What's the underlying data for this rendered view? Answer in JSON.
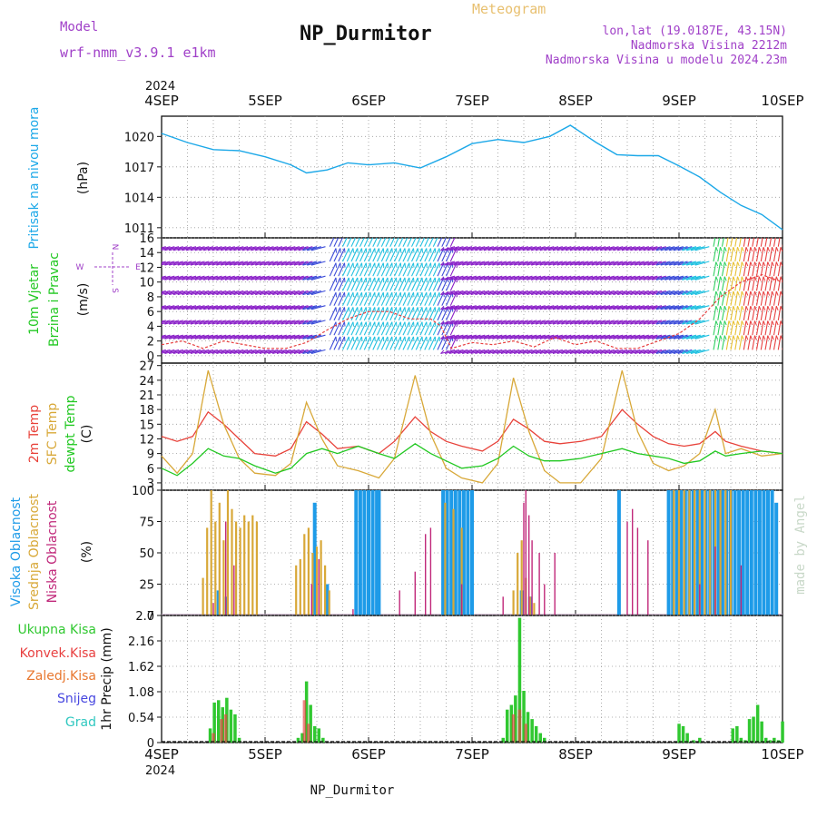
{
  "header": {
    "model_label": "Model",
    "model_name": "wrf-nmm_v3.9.1 e1km",
    "title": "NP_Durmitor",
    "meteogram_label": "Meteogram",
    "lonlat": "lon,lat (19.0187E, 43.15N)",
    "altitude": "Nadmorska Visina 2212m",
    "model_altitude": "Nadmorska Visina u modelu 2024.23m",
    "footer_station": "NP_Durmitor",
    "credit": "made by Angel"
  },
  "colors": {
    "pressure": "#1ca8e8",
    "temp_2m": "#e8423a",
    "sfc_temp": "#d8a838",
    "dewpoint": "#22c822",
    "high_cloud": "#1e9be8",
    "mid_cloud": "#d8a838",
    "low_cloud": "#c0287a",
    "total_precip": "#30c830",
    "conv_precip": "#e84040",
    "frozen_precip": "#e87830",
    "snow": "#4848e0",
    "hail": "#30c8c0",
    "header_purple": "#a040c8"
  },
  "chart_data": [
    {
      "type": "line",
      "panel": "pressure",
      "ylabel": [
        "Pritisak na nivou mora",
        "(hPa)"
      ],
      "yticks": [
        1011,
        1014,
        1017,
        1020
      ],
      "ylim": [
        1010,
        1022
      ],
      "x_days": [
        0,
        0.25,
        0.5,
        0.75,
        1.0,
        1.25,
        1.4,
        1.6,
        1.8,
        2.0,
        2.25,
        2.5,
        2.75,
        3.0,
        3.25,
        3.5,
        3.75,
        3.95,
        4.2,
        4.4,
        4.6,
        4.8,
        5.0,
        5.2,
        5.4,
        5.6,
        5.8,
        6.0
      ],
      "values": [
        1020.3,
        1019.4,
        1018.7,
        1018.6,
        1018.0,
        1017.2,
        1016.4,
        1016.7,
        1017.4,
        1017.2,
        1017.4,
        1016.9,
        1018.0,
        1019.3,
        1019.7,
        1019.4,
        1020.0,
        1021.1,
        1019.4,
        1018.2,
        1018.1,
        1018.1,
        1017.1,
        1016.0,
        1014.5,
        1013.2,
        1012.3,
        1010.8
      ]
    },
    {
      "type": "line",
      "panel": "wind",
      "ylabel": [
        "10m Vjetar",
        "Brzina i Pravac",
        "(m/s)"
      ],
      "yticks": [
        0,
        2,
        4,
        6,
        8,
        10,
        12,
        14,
        16
      ],
      "ylim": [
        -1,
        16
      ],
      "compass_labels": [
        "N",
        "W",
        "E",
        "S"
      ],
      "x_days": [
        0,
        0.2,
        0.4,
        0.6,
        0.8,
        1.0,
        1.2,
        1.4,
        1.6,
        1.8,
        2.0,
        2.2,
        2.4,
        2.6,
        2.7,
        2.8,
        3.0,
        3.2,
        3.4,
        3.6,
        3.8,
        4.0,
        4.2,
        4.4,
        4.6,
        4.8,
        5.0,
        5.2,
        5.4,
        5.6,
        5.8,
        6.0
      ],
      "values": [
        1.5,
        2.0,
        1.0,
        2.0,
        1.5,
        1.0,
        1.0,
        1.8,
        3.5,
        5.0,
        6.0,
        6.0,
        5.0,
        5.0,
        4.0,
        1.0,
        1.8,
        1.5,
        2.0,
        1.2,
        2.5,
        1.5,
        2.0,
        1.0,
        1.0,
        2.0,
        3.0,
        5.0,
        8.0,
        10.0,
        11.0,
        10.0
      ]
    },
    {
      "type": "line",
      "panel": "temperature",
      "ylabel": [
        "2m Temp",
        "SFC Temp",
        "dewpt Temp",
        "(C)"
      ],
      "yticks": [
        3,
        6,
        9,
        12,
        15,
        18,
        21,
        24,
        27
      ],
      "ylim": [
        1.5,
        27.5
      ],
      "x_days": [
        0,
        0.15,
        0.3,
        0.45,
        0.6,
        0.75,
        0.9,
        1.1,
        1.25,
        1.4,
        1.55,
        1.7,
        1.9,
        2.1,
        2.25,
        2.45,
        2.6,
        2.75,
        2.9,
        3.1,
        3.25,
        3.4,
        3.55,
        3.7,
        3.85,
        4.05,
        4.25,
        4.45,
        4.6,
        4.75,
        4.9,
        5.05,
        5.2,
        5.35,
        5.45,
        5.6,
        5.8,
        6.0
      ],
      "series": [
        {
          "name": "2m Temp",
          "values": [
            12.5,
            11.5,
            12.5,
            17.5,
            15.0,
            12.0,
            9.0,
            8.5,
            10.0,
            15.5,
            13.0,
            10.0,
            10.5,
            9.0,
            11.5,
            16.5,
            13.5,
            11.5,
            10.5,
            9.5,
            11.5,
            16.0,
            14.0,
            11.5,
            11.0,
            11.5,
            12.5,
            18.0,
            15.0,
            12.5,
            11.0,
            10.5,
            11.0,
            13.5,
            11.5,
            10.5,
            9.5,
            9.0
          ]
        },
        {
          "name": "SFC Temp",
          "values": [
            8.5,
            5.0,
            9.0,
            26.0,
            15.0,
            8.0,
            5.0,
            4.5,
            7.0,
            19.5,
            12.0,
            6.5,
            5.5,
            4.0,
            8.0,
            25.0,
            13.0,
            6.0,
            4.0,
            3.0,
            7.0,
            24.5,
            13.5,
            5.5,
            3.0,
            3.0,
            8.0,
            26.0,
            13.5,
            7.0,
            5.5,
            6.5,
            9.0,
            18.0,
            9.0,
            10.0,
            8.5,
            9.0
          ]
        },
        {
          "name": "dewpt Temp",
          "values": [
            6.0,
            4.5,
            7.0,
            10.0,
            8.5,
            8.0,
            6.5,
            5.0,
            6.0,
            9.0,
            10.0,
            9.0,
            10.5,
            9.0,
            8.0,
            11.0,
            9.0,
            7.5,
            6.0,
            6.5,
            8.0,
            10.5,
            8.5,
            7.5,
            7.5,
            8.0,
            9.0,
            10.0,
            9.0,
            8.5,
            8.0,
            7.0,
            7.5,
            9.5,
            8.5,
            9.0,
            9.5,
            9.0
          ]
        }
      ]
    },
    {
      "type": "bar",
      "panel": "cloud",
      "ylabel": [
        "Visoka Oblacnost",
        "Srednja Oblacnost",
        "Niska Oblacnost",
        "(%)"
      ],
      "yticks": [
        0,
        25,
        50,
        75,
        100
      ],
      "ylim": [
        0,
        100
      ],
      "series": [
        {
          "name": "Visoka Oblacnost",
          "x_days": [
            0.55,
            0.63,
            1.48,
            1.6,
            1.88,
            1.92,
            1.96,
            2.0,
            2.04,
            2.08,
            2.1,
            2.72,
            2.76,
            2.8,
            2.84,
            2.88,
            2.92,
            2.96,
            3.0,
            3.48,
            3.56,
            4.42,
            4.9,
            4.94,
            4.98,
            5.02,
            5.06,
            5.1,
            5.14,
            5.18,
            5.22,
            5.26,
            5.3,
            5.34,
            5.38,
            5.42,
            5.46,
            5.5,
            5.54,
            5.58,
            5.62,
            5.66,
            5.7,
            5.74,
            5.78,
            5.82,
            5.86,
            5.9,
            5.94
          ],
          "values": [
            20,
            15,
            90,
            25,
            100,
            100,
            100,
            100,
            100,
            100,
            100,
            100,
            100,
            100,
            100,
            100,
            100,
            100,
            100,
            20,
            15,
            100,
            100,
            100,
            100,
            100,
            100,
            100,
            100,
            100,
            100,
            100,
            100,
            100,
            100,
            100,
            100,
            100,
            100,
            100,
            100,
            100,
            100,
            100,
            100,
            100,
            100,
            100,
            90
          ]
        },
        {
          "name": "Srednja Oblacnost",
          "x_days": [
            0.4,
            0.44,
            0.48,
            0.52,
            0.56,
            0.6,
            0.64,
            0.68,
            0.72,
            0.76,
            0.8,
            0.84,
            0.88,
            0.92,
            1.3,
            1.34,
            1.38,
            1.42,
            1.46,
            1.5,
            1.54,
            1.58,
            1.62,
            2.74,
            2.82,
            2.9,
            3.4,
            3.44,
            3.48,
            3.52,
            3.56,
            3.6,
            4.95,
            5.0,
            5.05,
            5.1,
            5.15,
            5.2,
            5.25,
            5.3,
            5.35,
            5.4,
            5.45,
            5.5
          ],
          "values": [
            30,
            70,
            100,
            75,
            90,
            60,
            100,
            85,
            75,
            70,
            80,
            75,
            80,
            75,
            40,
            45,
            65,
            70,
            50,
            55,
            60,
            40,
            20,
            90,
            85,
            70,
            20,
            50,
            60,
            30,
            15,
            10,
            100,
            100,
            100,
            100,
            100,
            100,
            100,
            100,
            100,
            100,
            100,
            100
          ]
        },
        {
          "name": "Niska Oblacnost",
          "x_days": [
            0.5,
            0.62,
            0.7,
            1.45,
            1.52,
            1.85,
            2.3,
            2.45,
            2.55,
            2.6,
            2.9,
            3.3,
            3.5,
            3.52,
            3.55,
            3.58,
            3.65,
            3.7,
            3.8,
            4.5,
            4.55,
            4.6,
            4.7,
            5.2,
            5.35,
            5.6
          ],
          "values": [
            10,
            75,
            40,
            25,
            45,
            5,
            20,
            35,
            65,
            70,
            25,
            15,
            90,
            100,
            80,
            60,
            50,
            25,
            50,
            75,
            85,
            70,
            60,
            25,
            55,
            40
          ]
        }
      ]
    },
    {
      "type": "bar",
      "panel": "precip",
      "ylabel": [
        "1hr Precip (mm)"
      ],
      "legend": [
        "Ukupna Kisa",
        "Konvek.Kisa",
        "Zaledj.Kisa",
        "Snijeg",
        "Grad"
      ],
      "yticks": [
        0,
        0.54,
        1.08,
        1.62,
        2.16,
        2.7
      ],
      "ylim": [
        0,
        2.7
      ],
      "series": [
        {
          "name": "Ukupna Kisa",
          "x_days": [
            0.47,
            0.51,
            0.55,
            0.59,
            0.63,
            0.67,
            0.71,
            0.75,
            1.32,
            1.36,
            1.4,
            1.44,
            1.48,
            1.52,
            1.56,
            3.3,
            3.34,
            3.38,
            3.42,
            3.46,
            3.5,
            3.54,
            3.58,
            3.62,
            3.66,
            3.7,
            5.0,
            5.04,
            5.08,
            5.14,
            5.2,
            5.52,
            5.56,
            5.6,
            5.64,
            5.68,
            5.72,
            5.76,
            5.8,
            5.84,
            5.88,
            5.92,
            5.96,
            6.0
          ],
          "values": [
            0.3,
            0.85,
            0.9,
            0.75,
            0.95,
            0.7,
            0.6,
            0.1,
            0.1,
            0.2,
            1.3,
            0.8,
            0.35,
            0.3,
            0.1,
            0.1,
            0.7,
            0.8,
            1.0,
            2.65,
            1.1,
            0.65,
            0.5,
            0.35,
            0.2,
            0.1,
            0.4,
            0.35,
            0.2,
            0.05,
            0.1,
            0.3,
            0.35,
            0.1,
            0.05,
            0.5,
            0.55,
            0.8,
            0.45,
            0.1,
            0.05,
            0.1,
            0.05,
            0.45
          ]
        },
        {
          "name": "Konvek.Kisa",
          "x_days": [
            0.5,
            0.58,
            0.62,
            1.38,
            1.42,
            3.4,
            3.46,
            3.52
          ],
          "values": [
            0.2,
            0.5,
            0.6,
            0.9,
            0.4,
            0.6,
            0.7,
            0.4
          ]
        }
      ]
    }
  ],
  "axis": {
    "top_year": "2024",
    "bottom_year": "2024",
    "day_labels": [
      "4SEP",
      "5SEP",
      "6SEP",
      "7SEP",
      "8SEP",
      "9SEP",
      "10SEP"
    ]
  }
}
